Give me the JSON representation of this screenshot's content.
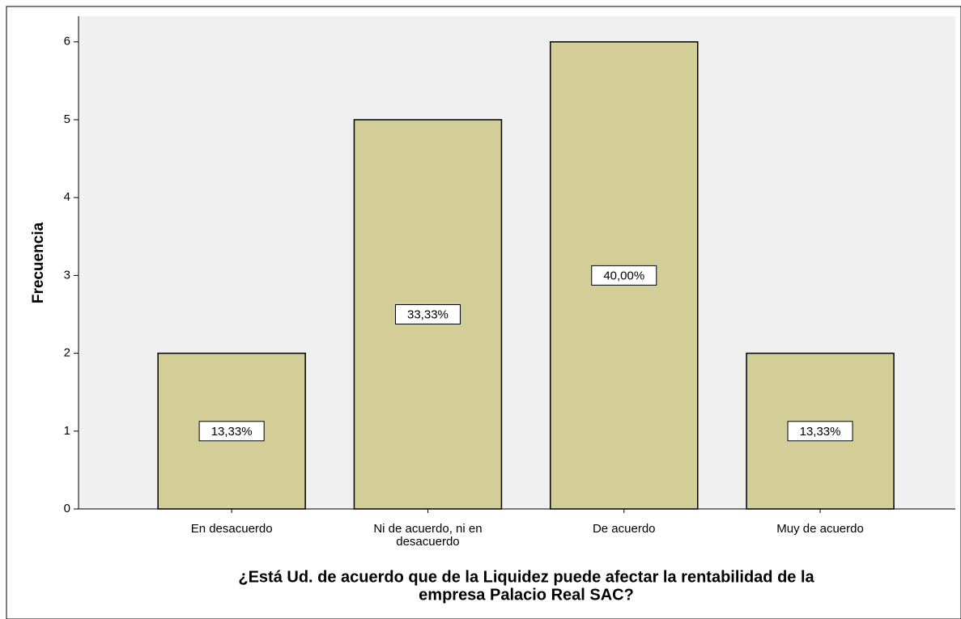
{
  "chart_data": {
    "type": "bar",
    "x_label": [
      "¿Está Ud. de acuerdo que de la Liquidez puede afectar la rentabilidad de la",
      "empresa Palacio Real SAC?"
    ],
    "y_label": "Frecuencia",
    "categories": [
      "En desacuerdo",
      "Ni de acuerdo, ni en desacuerdo",
      "De acuerdo",
      "Muy de acuerdo"
    ],
    "values": [
      2,
      5,
      6,
      2
    ],
    "percentages": [
      13.33,
      33.33,
      40.0,
      13.33
    ],
    "percentage_labels": [
      "13,33%",
      "33,33%",
      "40,00%",
      "13,33%"
    ],
    "color": "#d3ce97",
    "ylim": [
      0,
      6.33
    ],
    "yticks": [
      0,
      1,
      2,
      3,
      4,
      5,
      6
    ]
  }
}
